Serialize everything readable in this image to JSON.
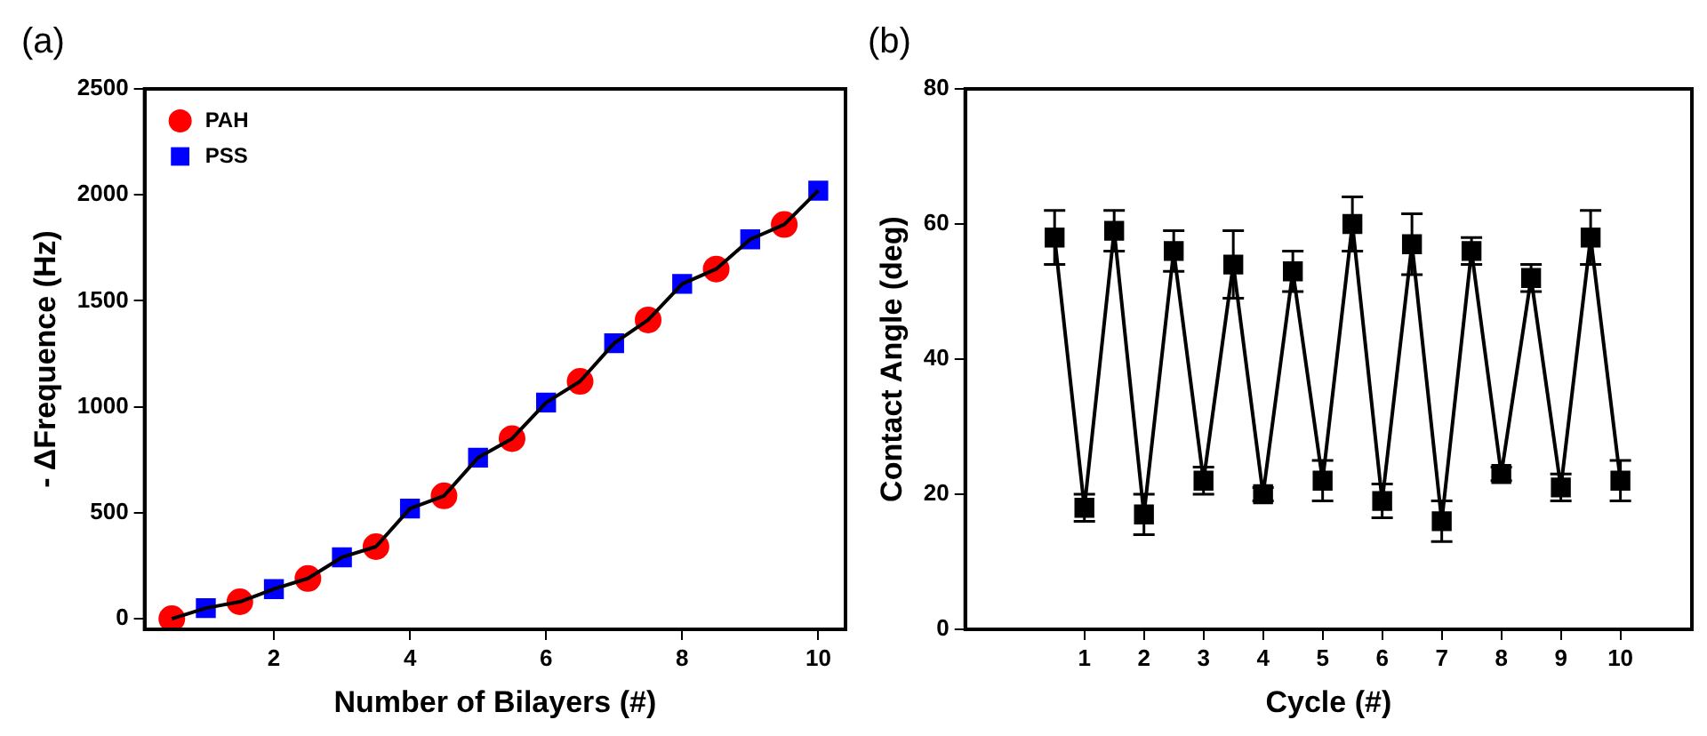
{
  "chart_data": [
    {
      "type": "scatter",
      "title": "(a)",
      "xlabel": "Number of Bilayers (#)",
      "ylabel": "- ΔFrequence (Hz)",
      "xlim": [
        0.1,
        10.4
      ],
      "xticks": [
        2,
        4,
        6,
        8,
        10
      ],
      "ylim": [
        -50,
        2500
      ],
      "yticks": [
        0,
        500,
        1000,
        1500,
        2000,
        2500
      ],
      "grid": false,
      "legend": "top left",
      "series": [
        {
          "type": "line",
          "color": "#000000",
          "marker": "none",
          "line_style": "solid",
          "x": [
            0.5,
            1,
            1.5,
            2,
            2.5,
            3,
            3.5,
            4,
            4.5,
            5,
            5.5,
            6,
            6.5,
            7,
            7.5,
            8,
            8.5,
            9,
            9.5,
            10
          ],
          "values": [
            0,
            50,
            80,
            140,
            190,
            290,
            340,
            520,
            580,
            760,
            850,
            1020,
            1120,
            1300,
            1410,
            1580,
            1650,
            1790,
            1860,
            2020
          ]
        },
        {
          "name": "PAH",
          "color": "#ff0000",
          "marker": "circle",
          "x": [
            0.5,
            1.5,
            2.5,
            3.5,
            4.5,
            5.5,
            6.5,
            7.5,
            8.5,
            9.5
          ],
          "values": [
            0,
            80,
            190,
            340,
            580,
            850,
            1120,
            1410,
            1650,
            1860
          ]
        },
        {
          "name": "PSS",
          "color": "#0000ff",
          "marker": "square",
          "x": [
            1,
            2,
            3,
            4,
            5,
            6,
            7,
            8,
            9,
            10
          ],
          "values": [
            50,
            140,
            290,
            520,
            760,
            1020,
            1300,
            1580,
            1790,
            2020
          ]
        }
      ]
    },
    {
      "type": "line",
      "title": "(b)",
      "xlabel": "Cycle (#)",
      "ylabel": "Contact Angle (deg)",
      "xlim": [
        -1,
        11.2
      ],
      "xticks": [
        1,
        2,
        3,
        4,
        5,
        6,
        7,
        8,
        9,
        10
      ],
      "ylim": [
        0,
        80
      ],
      "yticks": [
        0,
        20,
        40,
        60,
        80
      ],
      "grid": false,
      "legend": false,
      "series": [
        {
          "color": "#000000",
          "marker": "square",
          "line_style": "solid",
          "x": [
            0.5,
            1,
            1.5,
            2,
            2.5,
            3,
            3.5,
            4,
            4.5,
            5,
            5.5,
            6,
            6.5,
            7,
            7.5,
            8,
            8.5,
            9,
            9.5,
            10
          ],
          "values": [
            58,
            18,
            59,
            17,
            56,
            22,
            54,
            20,
            53,
            22,
            60,
            19,
            57,
            16,
            56,
            23,
            52,
            21,
            58,
            22
          ],
          "errors": [
            [
              54,
              62
            ],
            [
              16,
              20
            ],
            [
              56,
              62
            ],
            [
              14,
              20
            ],
            [
              53,
              59
            ],
            [
              20,
              24
            ],
            [
              49,
              59
            ],
            [
              19,
              21
            ],
            [
              50,
              56
            ],
            [
              19,
              25
            ],
            [
              56,
              64
            ],
            [
              16.5,
              21.5
            ],
            [
              52.5,
              61.5
            ],
            [
              13,
              19
            ],
            [
              54,
              58
            ],
            [
              22,
              24
            ],
            [
              50,
              54
            ],
            [
              19,
              23
            ],
            [
              54,
              62
            ],
            [
              19,
              25
            ]
          ]
        }
      ]
    }
  ]
}
